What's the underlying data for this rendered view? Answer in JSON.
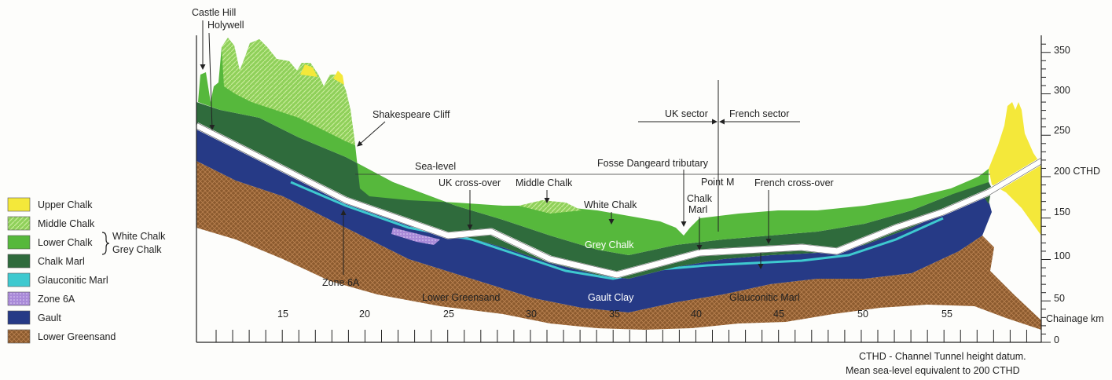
{
  "legend": [
    {
      "label": "Upper Chalk",
      "color": "#f4e83a",
      "pattern": "none"
    },
    {
      "label": "Middle Chalk",
      "color": "#8fd05a",
      "pattern": "hatch"
    },
    {
      "label": "Lower Chalk",
      "color": "#56b83c",
      "pattern": "none"
    },
    {
      "label": "Chalk Marl",
      "color": "#2f6b3c",
      "pattern": "none"
    },
    {
      "label": "Glauconitic Marl",
      "color": "#3ec9cf",
      "pattern": "none"
    },
    {
      "label": "Zone 6A",
      "color": "#a98ad8",
      "pattern": "dots"
    },
    {
      "label": "Gault",
      "color": "#263a86",
      "pattern": "none"
    },
    {
      "label": "Lower Greensand",
      "color": "#8b5a2e",
      "pattern": "cross"
    }
  ],
  "legend_brace": {
    "line1": "White Chalk",
    "line2": "Grey Chalk"
  },
  "annotations": {
    "castle_hill": "Castle Hill",
    "holywell": "Holywell",
    "shakespeare_cliff": "Shakespeare Cliff",
    "uk_sector": "UK sector",
    "french_sector": "French sector",
    "sea_level": "Sea-level",
    "fosse": "Fosse Dangeard tributary",
    "uk_crossover": "UK cross-over",
    "middle_chalk": "Middle Chalk",
    "white_chalk": "White Chalk",
    "point_m": "Point M",
    "chalk_marl_1": "Chalk",
    "chalk_marl_2": "Marl",
    "french_crossover": "French cross-over",
    "grey_chalk": "Grey Chalk",
    "zone_6a": "Zone 6A",
    "lower_greensand": "Lower Greensand",
    "gault_clay": "Gault Clay",
    "glauconitic_marl": "Glauconitic Marl"
  },
  "chainage_axis": {
    "label": "Chainage km",
    "ticks": [
      "15",
      "20",
      "25",
      "30",
      "35",
      "40",
      "45",
      "50",
      "55"
    ]
  },
  "height_axis": {
    "ticks": [
      "350",
      "300",
      "250",
      "200 CTHD",
      "150",
      "100",
      "50",
      "0"
    ]
  },
  "footnote": {
    "line1": "CTHD - Channel Tunnel height datum.",
    "line2": "Mean sea-level equivalent to 200 CTHD"
  }
}
